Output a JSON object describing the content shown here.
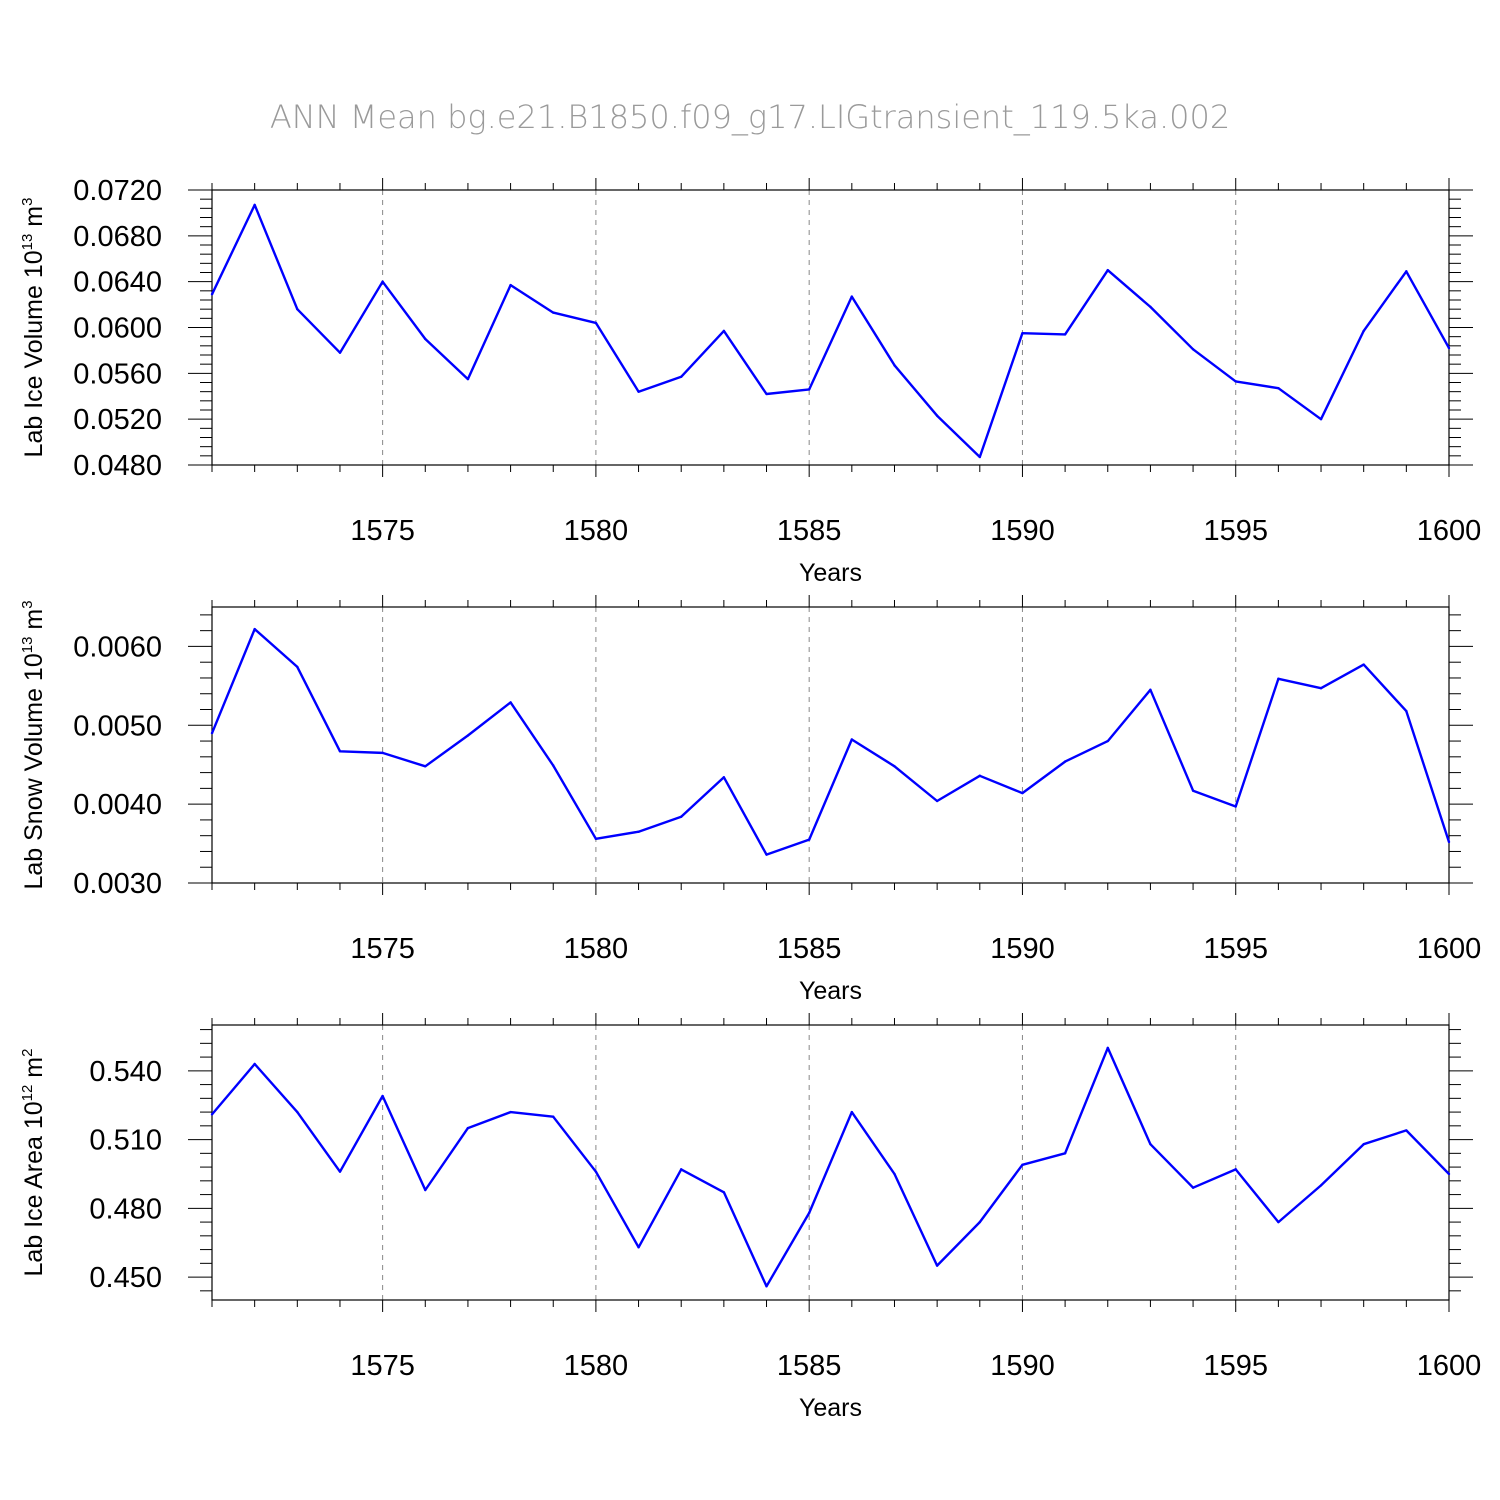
{
  "figure": {
    "title": "ANN Mean  bg.e21.B1850.f09_g17.LIGtransient_119.5ka.002",
    "colors": {
      "series": "#0000ff",
      "title": "#9a9a9a",
      "grid": "#888888"
    }
  },
  "chart_data": [
    {
      "type": "line",
      "xlabel": "Years",
      "ylabel": {
        "text": "Lab Ice Volume 10",
        "exp": "13",
        "unit": " m",
        "unit_exp": "3"
      },
      "xlim": [
        1571,
        1600
      ],
      "ylim": [
        0.048,
        0.072
      ],
      "yticks": [
        0.048,
        0.052,
        0.056,
        0.06,
        0.064,
        0.068,
        0.072
      ],
      "ytick_labels": [
        "0.0480",
        "0.0520",
        "0.0560",
        "0.0600",
        "0.0640",
        "0.0680",
        "0.0720"
      ],
      "xticks": [
        1575,
        1580,
        1585,
        1590,
        1595,
        1600
      ],
      "xtick_labels": [
        "1575",
        "1580",
        "1585",
        "1590",
        "1595",
        "1600"
      ],
      "grid": "x-dashed",
      "x": [
        1571,
        1572,
        1573,
        1574,
        1575,
        1576,
        1577,
        1578,
        1579,
        1580,
        1581,
        1582,
        1583,
        1584,
        1585,
        1586,
        1587,
        1588,
        1589,
        1590,
        1591,
        1592,
        1593,
        1594,
        1595,
        1596,
        1597,
        1598,
        1599,
        1600
      ],
      "series": [
        {
          "values": [
            0.0629,
            0.0707,
            0.0616,
            0.0578,
            0.064,
            0.059,
            0.0555,
            0.0637,
            0.0613,
            0.0604,
            0.0544,
            0.0557,
            0.0597,
            0.0542,
            0.0546,
            0.0627,
            0.0567,
            0.0523,
            0.0487,
            0.0595,
            0.0594,
            0.065,
            0.0618,
            0.0581,
            0.0553,
            0.0547,
            0.052,
            0.0597,
            0.0649,
            0.0582
          ]
        }
      ]
    },
    {
      "type": "line",
      "xlabel": "Years",
      "ylabel": {
        "text": "Lab Snow Volume 10",
        "exp": "13",
        "unit": " m",
        "unit_exp": "3"
      },
      "xlim": [
        1571,
        1600
      ],
      "ylim": [
        0.003,
        0.0065
      ],
      "yticks": [
        0.003,
        0.004,
        0.005,
        0.006
      ],
      "ytick_labels": [
        "0.0030",
        "0.0040",
        "0.0050",
        "0.0060"
      ],
      "xticks": [
        1575,
        1580,
        1585,
        1590,
        1595,
        1600
      ],
      "xtick_labels": [
        "1575",
        "1580",
        "1585",
        "1590",
        "1595",
        "1600"
      ],
      "grid": "x-dashed",
      "x": [
        1571,
        1572,
        1573,
        1574,
        1575,
        1576,
        1577,
        1578,
        1579,
        1580,
        1581,
        1582,
        1583,
        1584,
        1585,
        1586,
        1587,
        1588,
        1589,
        1590,
        1591,
        1592,
        1593,
        1594,
        1595,
        1596,
        1597,
        1598,
        1599,
        1600
      ],
      "series": [
        {
          "values": [
            0.0049,
            0.00622,
            0.00574,
            0.00467,
            0.00465,
            0.00448,
            0.00487,
            0.00529,
            0.00449,
            0.00356,
            0.00365,
            0.00384,
            0.00434,
            0.00336,
            0.00355,
            0.00482,
            0.00448,
            0.00404,
            0.00436,
            0.00414,
            0.00454,
            0.0048,
            0.00545,
            0.00417,
            0.00397,
            0.00559,
            0.00547,
            0.00577,
            0.00518,
            0.00352
          ]
        }
      ]
    },
    {
      "type": "line",
      "xlabel": "Years",
      "ylabel": {
        "text": "Lab Ice Area 10",
        "exp": "12",
        "unit": " m",
        "unit_exp": "2"
      },
      "xlim": [
        1571,
        1600
      ],
      "ylim": [
        0.44,
        0.56
      ],
      "yticks": [
        0.45,
        0.48,
        0.51,
        0.54
      ],
      "ytick_labels": [
        "0.450",
        "0.480",
        "0.510",
        "0.540"
      ],
      "xticks": [
        1575,
        1580,
        1585,
        1590,
        1595,
        1600
      ],
      "xtick_labels": [
        "1575",
        "1580",
        "1585",
        "1590",
        "1595",
        "1600"
      ],
      "grid": "x-dashed",
      "x": [
        1571,
        1572,
        1573,
        1574,
        1575,
        1576,
        1577,
        1578,
        1579,
        1580,
        1581,
        1582,
        1583,
        1584,
        1585,
        1586,
        1587,
        1588,
        1589,
        1590,
        1591,
        1592,
        1593,
        1594,
        1595,
        1596,
        1597,
        1598,
        1599,
        1600
      ],
      "series": [
        {
          "values": [
            0.521,
            0.543,
            0.522,
            0.496,
            0.529,
            0.488,
            0.515,
            0.522,
            0.52,
            0.496,
            0.463,
            0.497,
            0.487,
            0.446,
            0.478,
            0.522,
            0.495,
            0.455,
            0.474,
            0.499,
            0.504,
            0.55,
            0.508,
            0.489,
            0.497,
            0.474,
            0.49,
            0.508,
            0.514,
            0.495
          ]
        }
      ]
    }
  ]
}
